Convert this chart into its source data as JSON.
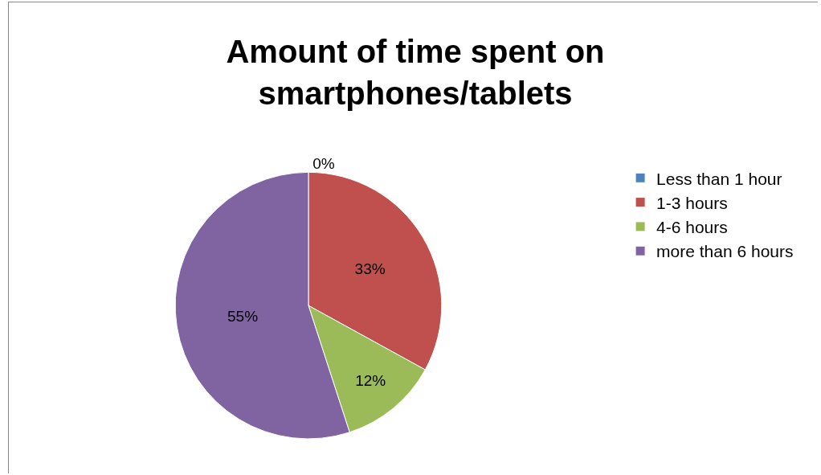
{
  "chart_data": {
    "type": "pie",
    "title": "Amount of time spent on smartphones/tablets",
    "categories": [
      "Less than 1 hour",
      "1-3 hours",
      "4-6 hours",
      "more than 6 hours"
    ],
    "values": [
      0,
      33,
      12,
      55
    ],
    "colors": [
      "#4f81bd",
      "#c0504d",
      "#9bbb59",
      "#8064a2"
    ],
    "value_labels": [
      "0%",
      "33%",
      "12%",
      "55%"
    ],
    "legend": "right"
  }
}
